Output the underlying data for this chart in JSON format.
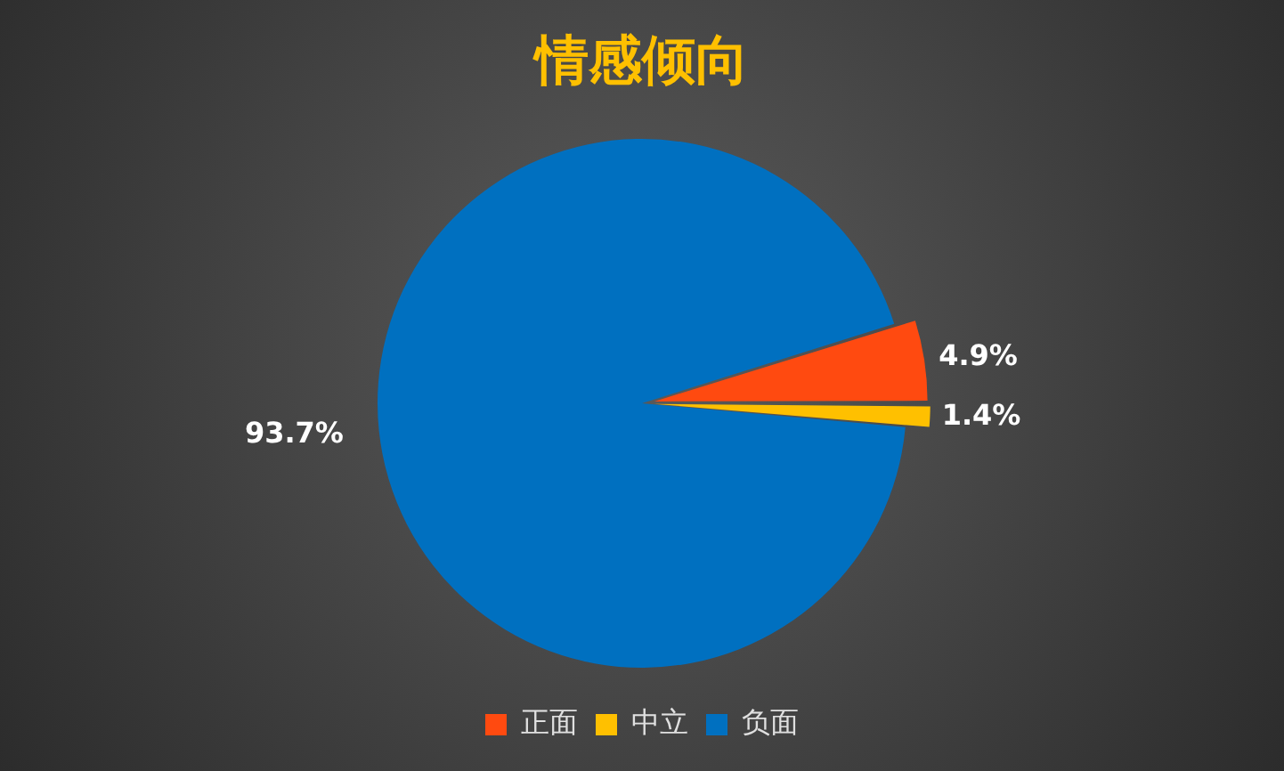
{
  "chart_data": {
    "type": "pie",
    "title": "情感倾向",
    "categories": [
      "正面",
      "中立",
      "负面"
    ],
    "values": [
      4.9,
      1.4,
      93.7
    ],
    "colors": [
      "#ff4a10",
      "#ffc000",
      "#0070c0"
    ],
    "value_labels": [
      "4.9%",
      "1.4%",
      "93.7%"
    ],
    "legend": "bottom"
  }
}
